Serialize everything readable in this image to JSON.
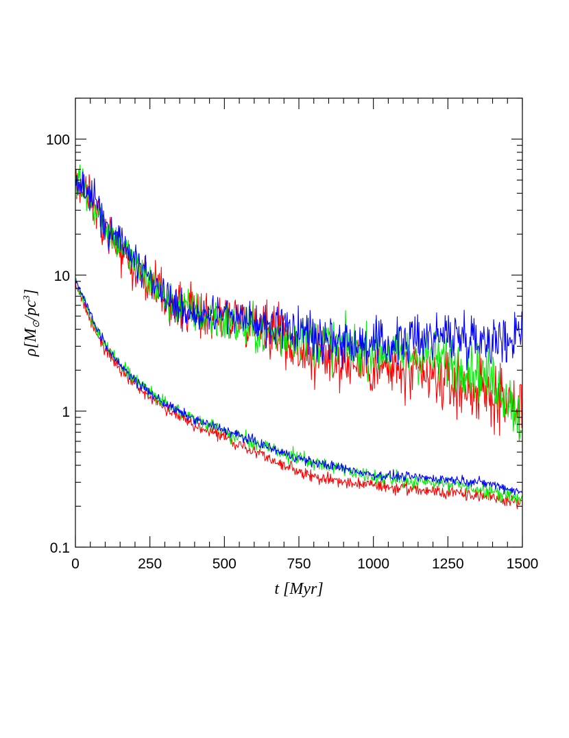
{
  "chart_data": {
    "type": "line",
    "title": "",
    "xlabel": "t  [Myr]",
    "ylabel": "ρ[M⊙/pc³]",
    "ylabel_parts": {
      "rho": "ρ",
      "open": "[M",
      "sun": "⊙",
      "slash": "/pc",
      "cube": "3",
      "close": "]"
    },
    "xlim": [
      0,
      1500
    ],
    "ylim": [
      0.1,
      200
    ],
    "yscale": "log",
    "x_ticks": [
      0,
      250,
      500,
      750,
      1000,
      1250,
      1500
    ],
    "x_tick_labels": [
      "0",
      "250",
      "500",
      "750",
      "1000",
      "1250",
      "1500"
    ],
    "y_ticks": [
      0.1,
      1,
      10,
      100
    ],
    "y_tick_labels": [
      "0.1",
      "1",
      "10",
      "100"
    ],
    "grid": false,
    "legend": "none",
    "colors": {
      "red": "#ff0000",
      "green": "#00ee00",
      "blue": "#0000ff"
    },
    "series": [
      {
        "name": "red-upper",
        "color": "red",
        "group": "upper",
        "x": [
          0,
          25,
          50,
          75,
          100,
          150,
          200,
          250,
          300,
          350,
          400,
          450,
          500,
          550,
          600,
          650,
          700,
          750,
          800,
          900,
          1000,
          1100,
          1200,
          1300,
          1400,
          1450,
          1500
        ],
        "values": [
          55,
          45,
          38,
          32,
          22,
          16,
          11,
          8.5,
          6.5,
          5.8,
          5.4,
          5.2,
          5.1,
          4.9,
          4.6,
          4.2,
          3.4,
          2.8,
          2.5,
          2.3,
          2.1,
          1.9,
          1.7,
          1.5,
          1.3,
          1.15,
          1.0
        ],
        "noise": 0.22
      },
      {
        "name": "green-upper",
        "color": "green",
        "group": "upper",
        "x": [
          0,
          25,
          50,
          75,
          100,
          150,
          200,
          250,
          300,
          350,
          400,
          450,
          500,
          550,
          600,
          650,
          700,
          750,
          800,
          900,
          1000,
          1100,
          1200,
          1300,
          1400,
          1450,
          1500
        ],
        "values": [
          50,
          43,
          36,
          30,
          23,
          17,
          12,
          9.0,
          6.8,
          5.9,
          5.3,
          4.8,
          4.5,
          4.2,
          3.9,
          3.7,
          3.5,
          3.6,
          3.3,
          3.0,
          2.8,
          2.6,
          2.5,
          2.2,
          1.7,
          1.3,
          0.8
        ],
        "noise": 0.2
      },
      {
        "name": "blue-upper",
        "color": "blue",
        "group": "upper",
        "x": [
          0,
          25,
          50,
          75,
          100,
          150,
          200,
          250,
          300,
          350,
          400,
          450,
          500,
          550,
          600,
          650,
          700,
          750,
          800,
          900,
          1000,
          1100,
          1200,
          1300,
          1400,
          1450,
          1500
        ],
        "values": [
          52,
          44,
          37,
          31,
          24,
          18,
          13,
          9.5,
          7.0,
          5.9,
          5.4,
          5.1,
          5.0,
          4.8,
          4.5,
          4.3,
          4.1,
          3.9,
          3.7,
          3.3,
          3.0,
          3.2,
          3.6,
          3.6,
          3.4,
          3.2,
          4.5
        ],
        "noise": 0.18
      },
      {
        "name": "red-lower",
        "color": "red",
        "group": "lower",
        "x": [
          0,
          25,
          50,
          75,
          100,
          150,
          200,
          250,
          300,
          350,
          400,
          450,
          500,
          550,
          600,
          650,
          700,
          750,
          800,
          900,
          1000,
          1100,
          1200,
          1300,
          1400,
          1450,
          1500
        ],
        "values": [
          9.0,
          6.5,
          4.8,
          3.6,
          2.9,
          2.0,
          1.55,
          1.25,
          1.05,
          0.92,
          0.8,
          0.72,
          0.64,
          0.56,
          0.5,
          0.45,
          0.4,
          0.36,
          0.33,
          0.3,
          0.285,
          0.27,
          0.26,
          0.25,
          0.23,
          0.22,
          0.21
        ],
        "noise": 0.05
      },
      {
        "name": "green-lower",
        "color": "green",
        "group": "lower",
        "x": [
          0,
          25,
          50,
          75,
          100,
          150,
          200,
          250,
          300,
          350,
          400,
          450,
          500,
          550,
          600,
          650,
          700,
          750,
          800,
          900,
          1000,
          1100,
          1200,
          1300,
          1400,
          1450,
          1500
        ],
        "values": [
          9.2,
          6.8,
          5.1,
          3.9,
          3.1,
          2.2,
          1.72,
          1.38,
          1.15,
          0.98,
          0.86,
          0.78,
          0.72,
          0.65,
          0.59,
          0.54,
          0.49,
          0.45,
          0.42,
          0.37,
          0.33,
          0.31,
          0.3,
          0.28,
          0.26,
          0.24,
          0.22
        ],
        "noise": 0.06
      },
      {
        "name": "blue-lower",
        "color": "blue",
        "group": "lower",
        "x": [
          0,
          25,
          50,
          75,
          100,
          150,
          200,
          250,
          300,
          350,
          400,
          450,
          500,
          550,
          600,
          650,
          700,
          750,
          800,
          900,
          1000,
          1100,
          1200,
          1300,
          1400,
          1450,
          1500
        ],
        "values": [
          9.5,
          7.0,
          5.2,
          3.9,
          3.1,
          2.2,
          1.68,
          1.36,
          1.14,
          0.98,
          0.87,
          0.79,
          0.73,
          0.66,
          0.6,
          0.54,
          0.49,
          0.45,
          0.42,
          0.38,
          0.34,
          0.33,
          0.32,
          0.31,
          0.29,
          0.27,
          0.25
        ],
        "noise": 0.04
      }
    ]
  }
}
